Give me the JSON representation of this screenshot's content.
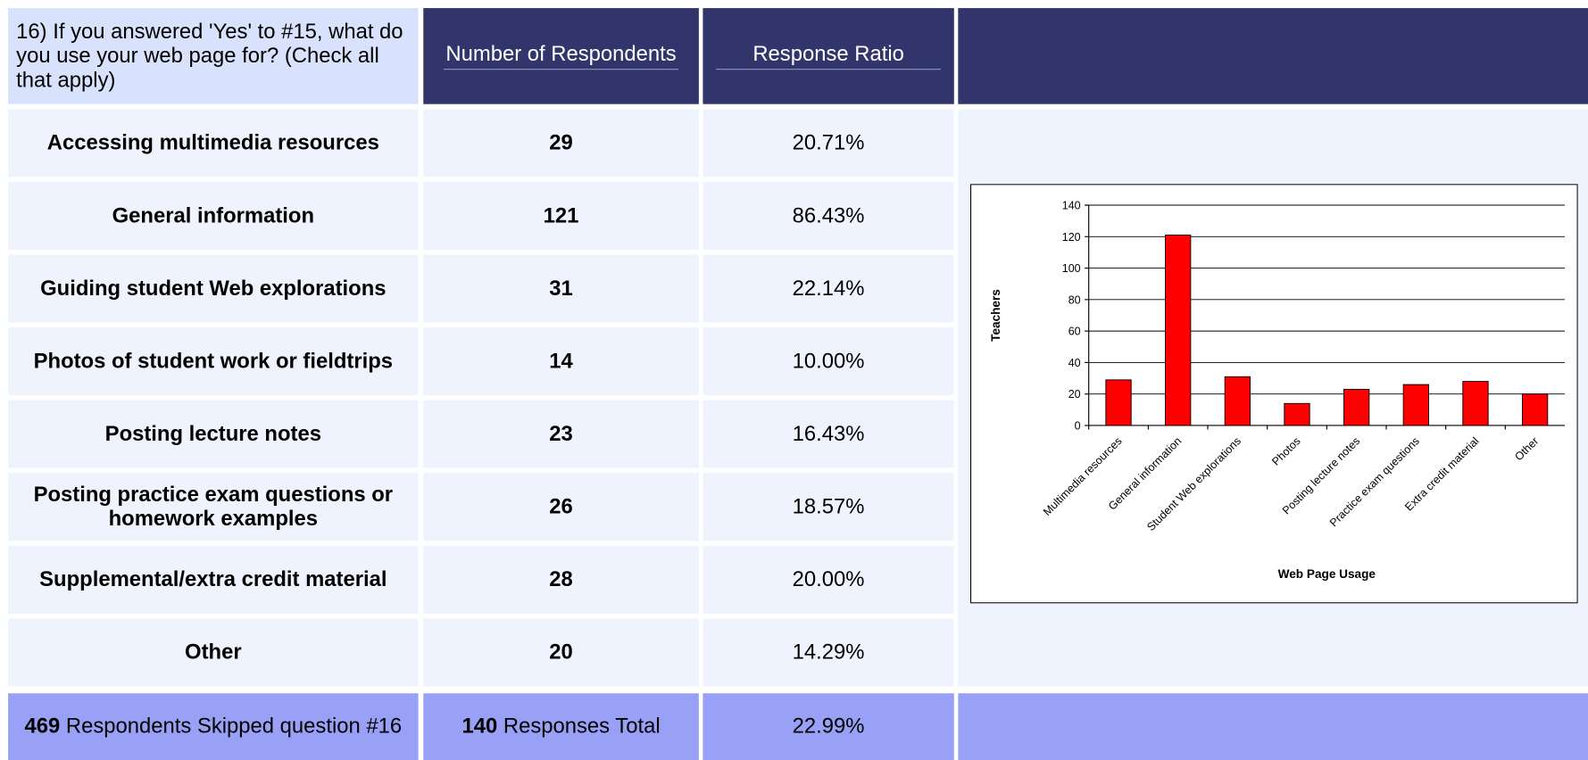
{
  "header": {
    "question": "16) If you answered 'Yes' to #15, what do you use your web page for? (Check all that apply)",
    "columns": [
      "Number of Respondents",
      "Response Ratio"
    ]
  },
  "rows": [
    {
      "label": "Accessing multimedia resources",
      "count": 29,
      "ratio": "20.71%"
    },
    {
      "label": "General information",
      "count": 121,
      "ratio": "86.43%"
    },
    {
      "label": "Guiding student Web explorations",
      "count": 31,
      "ratio": "22.14%"
    },
    {
      "label": "Photos of student work or fieldtrips",
      "count": 14,
      "ratio": "10.00%"
    },
    {
      "label": "Posting lecture notes",
      "count": 23,
      "ratio": "16.43%"
    },
    {
      "label": "Posting practice exam questions or homework examples",
      "count": 26,
      "ratio": "18.57%"
    },
    {
      "label": "Supplemental/extra credit material",
      "count": 28,
      "ratio": "20.00%"
    },
    {
      "label": "Other",
      "count": 20,
      "ratio": "14.29%"
    }
  ],
  "footer": {
    "skipped": 469,
    "skipped_text": "Respondents Skipped question #16",
    "total": 140,
    "total_text": "Responses Total",
    "ratio": "22.99%"
  },
  "chart_data": {
    "type": "bar",
    "x_label": "Web Page Usage",
    "y_label": "Teachers",
    "categories": [
      "Multimedia resources",
      "General information",
      "Student Web explorations",
      "Photos",
      "Posting lecture notes",
      "Practice exam questions",
      "Extra credit material",
      "Other"
    ],
    "values": [
      29,
      121,
      31,
      14,
      23,
      26,
      28,
      20
    ],
    "color": "#ff0000",
    "ylim": [
      0,
      140
    ],
    "yticks": [
      0,
      20,
      40,
      60,
      80,
      100,
      120,
      140
    ],
    "grid": true
  }
}
